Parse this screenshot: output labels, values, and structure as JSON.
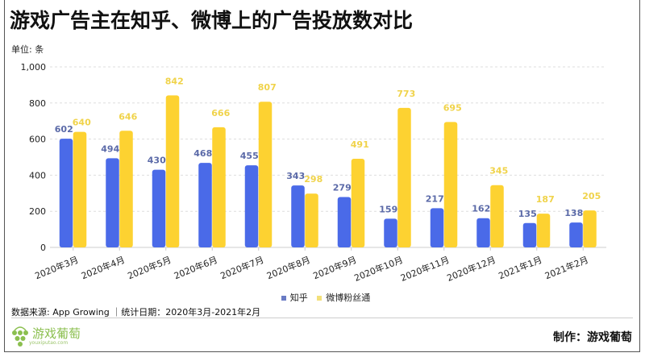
{
  "title": "游戏广告主在知乎、微博上的广告投放数对比",
  "unit_label": "单位: 条",
  "chart_data": {
    "type": "bar",
    "title": "游戏广告主在知乎、微博上的广告投放数对比",
    "ylabel": "单位: 条",
    "ylim": [
      0,
      1000
    ],
    "yticks": [
      "0",
      "200",
      "400",
      "600",
      "800",
      "1,000"
    ],
    "ytick_values": [
      0,
      200,
      400,
      600,
      800,
      1000
    ],
    "grid": true,
    "legend_position": "bottom",
    "categories": [
      "2020年3月",
      "2020年4月",
      "2020年5月",
      "2020年6月",
      "2020年7月",
      "2020年8月",
      "2020年9月",
      "2020年10月",
      "2020年11月",
      "2020年12月",
      "2021年1月",
      "2021年2月"
    ],
    "series": [
      {
        "name": "知乎",
        "color": "#4a6ae8",
        "label_color": "#5b6aa8",
        "values": [
          602,
          494,
          430,
          468,
          455,
          343,
          279,
          159,
          217,
          162,
          135,
          138
        ]
      },
      {
        "name": "微博粉丝通",
        "color": "#fdd231",
        "label_color": "#f0d34a",
        "values": [
          640,
          646,
          842,
          666,
          807,
          298,
          491,
          773,
          695,
          345,
          187,
          205
        ]
      }
    ]
  },
  "legend": {
    "items": [
      "知乎",
      "微博粉丝通"
    ]
  },
  "source": "数据来源: App Growing ｜统计日期：2020年3月-2021年2月",
  "logo": {
    "name": "游戏葡萄",
    "url_text": "youxiputao.com"
  },
  "credit": "制作：游戏葡萄"
}
